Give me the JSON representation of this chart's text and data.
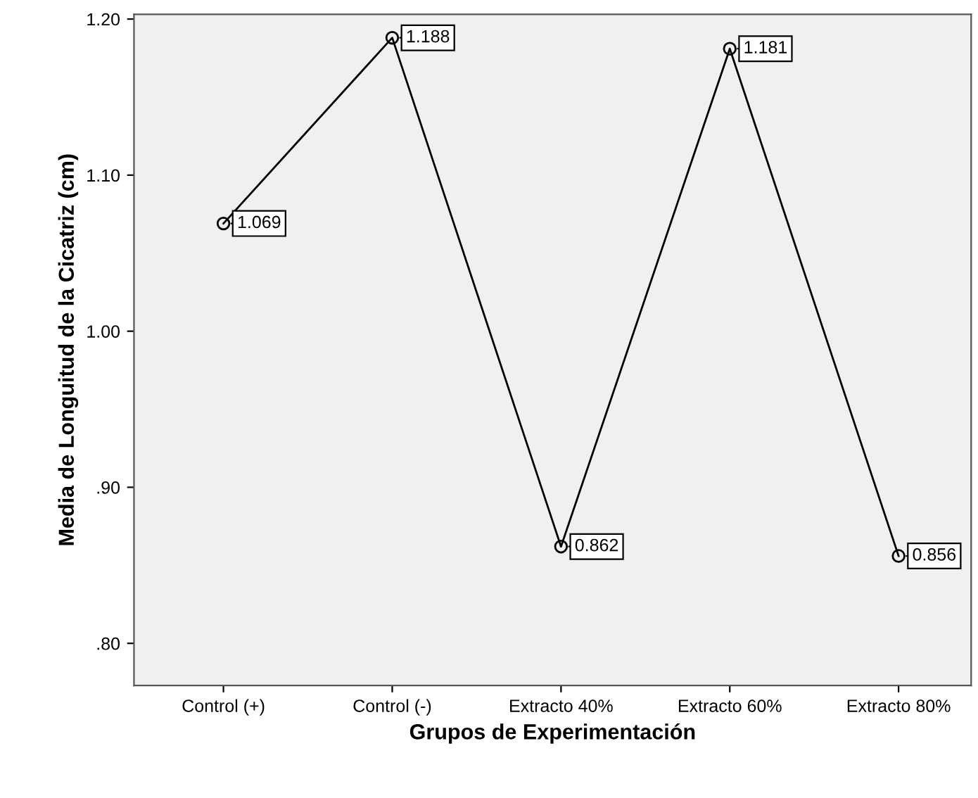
{
  "chart_data": {
    "type": "line",
    "xlabel": "Grupos de Experimentación",
    "ylabel": "Media de Longuitud de la Cicatriz (cm)",
    "categories": [
      "Control (+)",
      "Control (-)",
      "Extracto 40%",
      "Extracto 60%",
      "Extracto 80%"
    ],
    "series": [
      {
        "color": "#000000",
        "values": [
          1.069,
          1.188,
          0.862,
          1.181,
          0.856
        ],
        "value_labels": [
          "1.069",
          "1.188",
          "0.862",
          "1.181",
          "0.856"
        ]
      }
    ],
    "ylim": [
      0.773,
      1.203
    ],
    "yticks": [
      {
        "value": 0.8,
        "label": ".80"
      },
      {
        "value": 0.9,
        "label": ".90"
      },
      {
        "value": 1.0,
        "label": "1.00"
      },
      {
        "value": 1.1,
        "label": "1.10"
      },
      {
        "value": 1.2,
        "label": "1.20"
      }
    ],
    "marker": "circle",
    "line_style": "solid",
    "grid": false,
    "legend": false
  }
}
